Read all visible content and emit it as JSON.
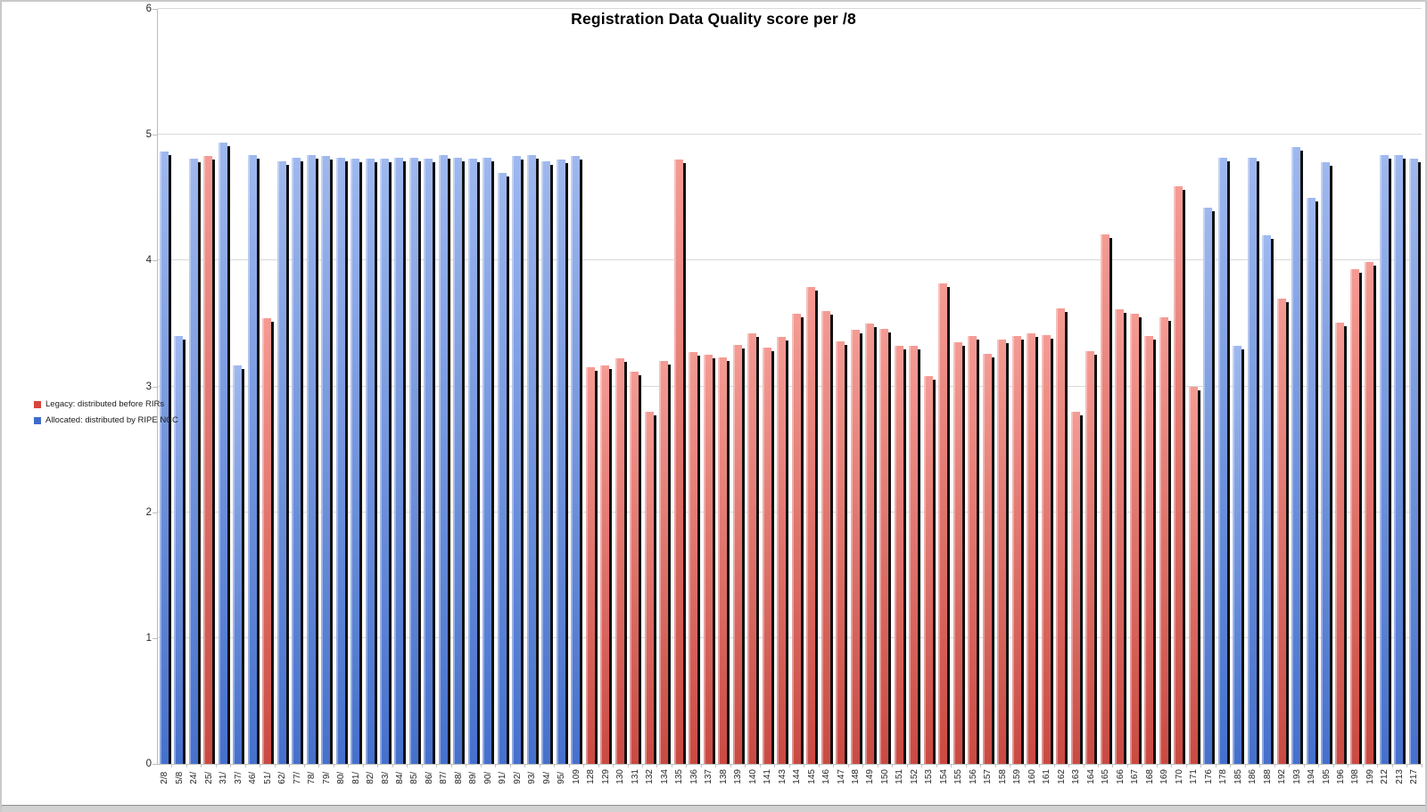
{
  "title": "Registration Data Quality score per /8",
  "legend": {
    "items": [
      {
        "label": "Legacy: distributed before RIRs",
        "series": "legacy",
        "swatch": "#D8453C"
      },
      {
        "label": "Allocated: distributed by RIPE NCC",
        "series": "allocated",
        "swatch": "#3F6BC9"
      }
    ]
  },
  "colors": {
    "legacy_top": "#F49B94",
    "legacy_bottom": "#C94A42",
    "allocated_top": "#9FB8EE",
    "allocated_bottom": "#4570CC",
    "bar_shadow": "#111111",
    "gridline": "#D9D9D9",
    "axis_line": "#BDBDBD"
  },
  "chart_data": {
    "type": "bar",
    "title": "Registration Data Quality score per /8",
    "xlabel": "",
    "ylabel": "",
    "ylim": [
      0,
      6
    ],
    "yticks": [
      0,
      1,
      2,
      3,
      4,
      5,
      6
    ],
    "grid": "horizontal",
    "legend_position": "middle-left",
    "series_names": [
      "Legacy: distributed before RIRs",
      "Allocated: distributed by RIPE NCC"
    ],
    "bars": [
      {
        "label": "2/8",
        "value": 4.87,
        "series": "allocated"
      },
      {
        "label": "5/8",
        "value": 3.4,
        "series": "allocated"
      },
      {
        "label": "24/",
        "value": 4.81,
        "series": "allocated"
      },
      {
        "label": "25/",
        "value": 4.83,
        "series": "legacy"
      },
      {
        "label": "31/",
        "value": 4.94,
        "series": "allocated"
      },
      {
        "label": "37/",
        "value": 3.17,
        "series": "allocated"
      },
      {
        "label": "46/",
        "value": 4.84,
        "series": "allocated"
      },
      {
        "label": "51/",
        "value": 3.54,
        "series": "legacy"
      },
      {
        "label": "62/",
        "value": 4.79,
        "series": "allocated"
      },
      {
        "label": "77/",
        "value": 4.82,
        "series": "allocated"
      },
      {
        "label": "78/",
        "value": 4.84,
        "series": "allocated"
      },
      {
        "label": "79/",
        "value": 4.83,
        "series": "allocated"
      },
      {
        "label": "80/",
        "value": 4.82,
        "series": "allocated"
      },
      {
        "label": "81/",
        "value": 4.81,
        "series": "allocated"
      },
      {
        "label": "82/",
        "value": 4.81,
        "series": "allocated"
      },
      {
        "label": "83/",
        "value": 4.81,
        "series": "allocated"
      },
      {
        "label": "84/",
        "value": 4.82,
        "series": "allocated"
      },
      {
        "label": "85/",
        "value": 4.82,
        "series": "allocated"
      },
      {
        "label": "86/",
        "value": 4.81,
        "series": "allocated"
      },
      {
        "label": "87/",
        "value": 4.84,
        "series": "allocated"
      },
      {
        "label": "88/",
        "value": 4.82,
        "series": "allocated"
      },
      {
        "label": "89/",
        "value": 4.81,
        "series": "allocated"
      },
      {
        "label": "90/",
        "value": 4.82,
        "series": "allocated"
      },
      {
        "label": "91/",
        "value": 4.7,
        "series": "allocated"
      },
      {
        "label": "92/",
        "value": 4.83,
        "series": "allocated"
      },
      {
        "label": "93/",
        "value": 4.84,
        "series": "allocated"
      },
      {
        "label": "94/",
        "value": 4.79,
        "series": "allocated"
      },
      {
        "label": "95/",
        "value": 4.8,
        "series": "allocated"
      },
      {
        "label": "109",
        "value": 4.83,
        "series": "allocated"
      },
      {
        "label": "128",
        "value": 3.15,
        "series": "legacy"
      },
      {
        "label": "129",
        "value": 3.17,
        "series": "legacy"
      },
      {
        "label": "130",
        "value": 3.22,
        "series": "legacy"
      },
      {
        "label": "131",
        "value": 3.12,
        "series": "legacy"
      },
      {
        "label": "132",
        "value": 2.8,
        "series": "legacy"
      },
      {
        "label": "134",
        "value": 3.2,
        "series": "legacy"
      },
      {
        "label": "135",
        "value": 4.8,
        "series": "legacy"
      },
      {
        "label": "136",
        "value": 3.27,
        "series": "legacy"
      },
      {
        "label": "137",
        "value": 3.25,
        "series": "legacy"
      },
      {
        "label": "138",
        "value": 3.23,
        "series": "legacy"
      },
      {
        "label": "139",
        "value": 3.33,
        "series": "legacy"
      },
      {
        "label": "140",
        "value": 3.42,
        "series": "legacy"
      },
      {
        "label": "141",
        "value": 3.31,
        "series": "legacy"
      },
      {
        "label": "143",
        "value": 3.39,
        "series": "legacy"
      },
      {
        "label": "144",
        "value": 3.58,
        "series": "legacy"
      },
      {
        "label": "145",
        "value": 3.79,
        "series": "legacy"
      },
      {
        "label": "146",
        "value": 3.6,
        "series": "legacy"
      },
      {
        "label": "147",
        "value": 3.36,
        "series": "legacy"
      },
      {
        "label": "148",
        "value": 3.45,
        "series": "legacy"
      },
      {
        "label": "149",
        "value": 3.5,
        "series": "legacy"
      },
      {
        "label": "150",
        "value": 3.46,
        "series": "legacy"
      },
      {
        "label": "151",
        "value": 3.32,
        "series": "legacy"
      },
      {
        "label": "152",
        "value": 3.32,
        "series": "legacy"
      },
      {
        "label": "153",
        "value": 3.08,
        "series": "legacy"
      },
      {
        "label": "154",
        "value": 3.82,
        "series": "legacy"
      },
      {
        "label": "155",
        "value": 3.35,
        "series": "legacy"
      },
      {
        "label": "156",
        "value": 3.4,
        "series": "legacy"
      },
      {
        "label": "157",
        "value": 3.26,
        "series": "legacy"
      },
      {
        "label": "158",
        "value": 3.37,
        "series": "legacy"
      },
      {
        "label": "159",
        "value": 3.4,
        "series": "legacy"
      },
      {
        "label": "160",
        "value": 3.42,
        "series": "legacy"
      },
      {
        "label": "161",
        "value": 3.41,
        "series": "legacy"
      },
      {
        "label": "162",
        "value": 3.62,
        "series": "legacy"
      },
      {
        "label": "163",
        "value": 2.8,
        "series": "legacy"
      },
      {
        "label": "164",
        "value": 3.28,
        "series": "legacy"
      },
      {
        "label": "165",
        "value": 4.21,
        "series": "legacy"
      },
      {
        "label": "166",
        "value": 3.61,
        "series": "legacy"
      },
      {
        "label": "167",
        "value": 3.58,
        "series": "legacy"
      },
      {
        "label": "168",
        "value": 3.4,
        "series": "legacy"
      },
      {
        "label": "169",
        "value": 3.55,
        "series": "legacy"
      },
      {
        "label": "170",
        "value": 4.59,
        "series": "legacy"
      },
      {
        "label": "171",
        "value": 3.0,
        "series": "legacy"
      },
      {
        "label": "176",
        "value": 4.42,
        "series": "allocated"
      },
      {
        "label": "178",
        "value": 4.82,
        "series": "allocated"
      },
      {
        "label": "185",
        "value": 3.32,
        "series": "allocated"
      },
      {
        "label": "186",
        "value": 4.82,
        "series": "allocated"
      },
      {
        "label": "188",
        "value": 4.2,
        "series": "allocated"
      },
      {
        "label": "192",
        "value": 3.7,
        "series": "legacy"
      },
      {
        "label": "193",
        "value": 4.9,
        "series": "allocated"
      },
      {
        "label": "194",
        "value": 4.5,
        "series": "allocated"
      },
      {
        "label": "195",
        "value": 4.78,
        "series": "allocated"
      },
      {
        "label": "196",
        "value": 3.51,
        "series": "legacy"
      },
      {
        "label": "198",
        "value": 3.93,
        "series": "legacy"
      },
      {
        "label": "199",
        "value": 3.99,
        "series": "legacy"
      },
      {
        "label": "212",
        "value": 4.84,
        "series": "allocated"
      },
      {
        "label": "213",
        "value": 4.84,
        "series": "allocated"
      },
      {
        "label": "217",
        "value": 4.81,
        "series": "allocated"
      }
    ]
  }
}
